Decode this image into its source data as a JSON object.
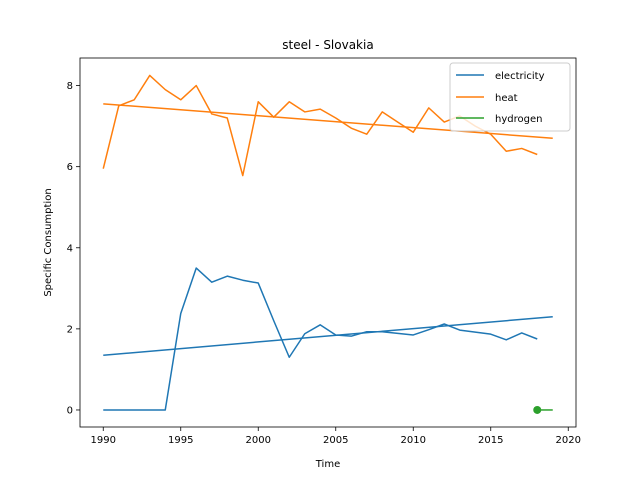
{
  "chart_data": {
    "type": "line",
    "title": "steel - Slovakia",
    "xlabel": "Time",
    "ylabel": "Specific Consumption",
    "xlim": [
      1988.5,
      2020.5
    ],
    "ylim": [
      -0.42,
      8.68
    ],
    "xticks": [
      1990,
      1995,
      2000,
      2005,
      2010,
      2015,
      2020
    ],
    "yticks": [
      0,
      2,
      4,
      6,
      8
    ],
    "grid": false,
    "legend_position": "top-right",
    "series": [
      {
        "name": "electricity",
        "color": "#1f77b4",
        "x": [
          1990,
          1991,
          1992,
          1993,
          1994,
          1995,
          1996,
          1997,
          1998,
          1999,
          2000,
          2001,
          2002,
          2003,
          2004,
          2005,
          2006,
          2007,
          2008,
          2009,
          2010,
          2011,
          2012,
          2013,
          2014,
          2015,
          2016,
          2017,
          2018
        ],
        "y": [
          0,
          0,
          0,
          0,
          0,
          2.38,
          3.5,
          3.15,
          3.3,
          3.2,
          3.13,
          2.2,
          1.3,
          1.88,
          2.1,
          1.85,
          1.82,
          1.93,
          1.93,
          1.89,
          1.85,
          1.98,
          2.12,
          1.97,
          1.92,
          1.87,
          1.73,
          1.9,
          1.75
        ],
        "trend": {
          "x": [
            1990,
            2019
          ],
          "y": [
            1.35,
            2.3
          ]
        }
      },
      {
        "name": "heat",
        "color": "#ff7f0e",
        "x": [
          1990,
          1991,
          1992,
          1993,
          1994,
          1995,
          1996,
          1997,
          1998,
          1999,
          2000,
          2001,
          2002,
          2003,
          2004,
          2005,
          2006,
          2007,
          2008,
          2009,
          2010,
          2011,
          2012,
          2013,
          2014,
          2015,
          2016,
          2017,
          2018
        ],
        "y": [
          5.95,
          7.5,
          7.65,
          8.25,
          7.9,
          7.65,
          8.0,
          7.3,
          7.2,
          5.78,
          7.6,
          7.22,
          7.6,
          7.35,
          7.42,
          7.2,
          6.95,
          6.8,
          7.35,
          7.1,
          6.85,
          7.45,
          7.1,
          7.25,
          7.0,
          6.8,
          6.38,
          6.45,
          6.3
        ],
        "trend": {
          "x": [
            1990,
            2019
          ],
          "y": [
            7.55,
            6.7
          ]
        }
      },
      {
        "name": "hydrogen",
        "color": "#2ca02c",
        "x": [
          2018
        ],
        "y": [
          0
        ],
        "trend": {
          "x": [
            2018,
            2019
          ],
          "y": [
            0,
            0
          ]
        }
      }
    ]
  }
}
